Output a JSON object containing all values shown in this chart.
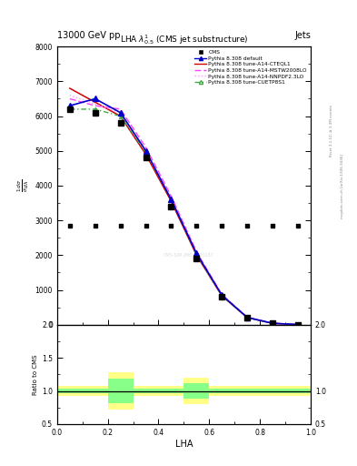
{
  "title": "13000 GeV pp",
  "top_right_label": "Jets",
  "plot_title": "LHA $\\lambda^{1}_{0.5}$ (CMS jet substructure)",
  "xlabel": "LHA",
  "ylabel_main": "$\\frac{1}{\\sigma} \\frac{d\\sigma}{d\\lambda}$",
  "ylabel_ratio": "Ratio to CMS",
  "right_label_top": "Rivet 3.1.10, ≥ 3.3M events",
  "right_label_bottom": "mcplots.cern.ch [arXiv:1306.3436]",
  "watermark": "CMS-SIM-JME-1920187",
  "x_values": [
    0.05,
    0.15,
    0.25,
    0.35,
    0.45,
    0.55,
    0.65,
    0.75,
    0.85,
    0.95
  ],
  "cms_data": [
    6200,
    6100,
    5800,
    4800,
    3400,
    1900,
    800,
    200,
    40,
    5
  ],
  "pythia_default": [
    6300,
    6500,
    6100,
    5000,
    3600,
    2050,
    850,
    210,
    42,
    5
  ],
  "pythia_cteql1": [
    6800,
    6400,
    6000,
    4900,
    3550,
    2000,
    830,
    205,
    40,
    5
  ],
  "pythia_mstw": [
    6500,
    6300,
    6200,
    5100,
    3700,
    2100,
    870,
    215,
    43,
    5
  ],
  "pythia_nnpdf": [
    6600,
    6350,
    6100,
    5000,
    3650,
    2050,
    850,
    210,
    41,
    5
  ],
  "pythia_cuetp": [
    6200,
    6200,
    6000,
    4950,
    3600,
    2020,
    830,
    205,
    40,
    5
  ],
  "bin_edges": [
    0.0,
    0.1,
    0.2,
    0.3,
    0.4,
    0.5,
    0.6,
    0.7,
    0.8,
    0.9,
    1.0
  ],
  "ratio_yellow_lo": [
    0.93,
    0.93,
    0.72,
    0.93,
    0.93,
    0.8,
    0.93,
    0.93,
    0.93,
    0.93
  ],
  "ratio_yellow_hi": [
    1.07,
    1.07,
    1.28,
    1.07,
    1.07,
    1.2,
    1.07,
    1.07,
    1.07,
    1.07
  ],
  "ratio_green_lo": [
    0.97,
    0.97,
    0.82,
    0.97,
    0.97,
    0.88,
    0.97,
    0.97,
    0.97,
    0.97
  ],
  "ratio_green_hi": [
    1.03,
    1.03,
    1.18,
    1.03,
    1.03,
    1.12,
    1.03,
    1.03,
    1.03,
    1.03
  ],
  "colors": {
    "cms": "black",
    "pythia_default": "#0000cc",
    "pythia_cteql1": "#cc0000",
    "pythia_mstw": "#ff44ff",
    "pythia_nnpdf": "#ff99ff",
    "pythia_cuetp": "#44aa44"
  },
  "ylim_main": [
    0,
    8000
  ],
  "ylim_ratio": [
    0.5,
    2.0
  ],
  "xlim": [
    0.0,
    1.0
  ]
}
